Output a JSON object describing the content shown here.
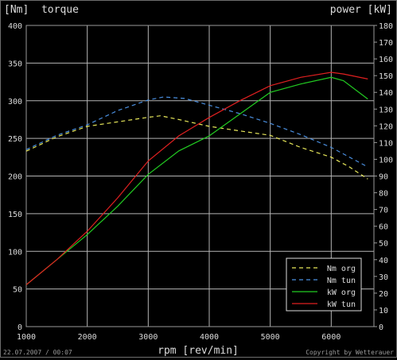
{
  "chart_data": {
    "type": "line",
    "left_axis_title": "[Nm]  torque",
    "right_axis_title": "power [kW]",
    "xlabel": "rpm [rev/min]",
    "footer_left": "22.07.2007 / 00:07",
    "footer_right": "Copyright by Wetterauer",
    "xlim": [
      1000,
      6700
    ],
    "x_ticks": [
      1000,
      2000,
      3000,
      4000,
      5000,
      6000
    ],
    "ylim_left": [
      0,
      400
    ],
    "y_ticks_left": [
      0,
      50,
      100,
      150,
      200,
      250,
      300,
      350,
      400
    ],
    "ylim_right": [
      0,
      180
    ],
    "y_ticks_right": [
      0,
      10,
      20,
      30,
      40,
      50,
      60,
      70,
      80,
      90,
      100,
      110,
      120,
      130,
      140,
      150,
      160,
      170,
      180
    ],
    "grid": true,
    "legend_position": "bottom-right",
    "colors": {
      "background": "#000000",
      "grid": "#b4b4b4",
      "text": "#dcdcdc",
      "axis": "#9a9a9a"
    },
    "series": [
      {
        "name": "Nm org",
        "axis": "left",
        "style": "dashed",
        "color": "#e8e85a",
        "x": [
          1000,
          1500,
          2000,
          2500,
          3000,
          3200,
          3500,
          4000,
          4500,
          5000,
          5500,
          6000,
          6300,
          6600
        ],
        "y": [
          233,
          252,
          266,
          272,
          278,
          280,
          275,
          266,
          260,
          254,
          238,
          225,
          212,
          196
        ]
      },
      {
        "name": "Nm tun",
        "axis": "left",
        "style": "dashed",
        "color": "#4a8fe0",
        "x": [
          1000,
          1500,
          2000,
          2500,
          3000,
          3250,
          3600,
          4000,
          4500,
          5000,
          5500,
          6000,
          6300,
          6600
        ],
        "y": [
          235,
          254,
          268,
          287,
          301,
          305,
          303,
          294,
          283,
          270,
          255,
          238,
          225,
          212
        ]
      },
      {
        "name": "kW org",
        "axis": "right",
        "style": "solid",
        "color": "#22cc22",
        "x": [
          1000,
          1500,
          2000,
          2500,
          3000,
          3500,
          4000,
          4500,
          5000,
          5500,
          6000,
          6200,
          6600
        ],
        "y": [
          25,
          40,
          55,
          72,
          91,
          105,
          114,
          127,
          140,
          145,
          149,
          147,
          136
        ]
      },
      {
        "name": "kW tun",
        "axis": "right",
        "style": "solid",
        "color": "#e02020",
        "x": [
          1000,
          1500,
          2000,
          2500,
          3000,
          3500,
          4000,
          4500,
          5000,
          5500,
          6000,
          6200,
          6600
        ],
        "y": [
          25,
          40,
          57,
          77,
          99,
          114,
          125,
          135,
          144,
          149,
          152,
          151,
          148
        ]
      }
    ]
  }
}
